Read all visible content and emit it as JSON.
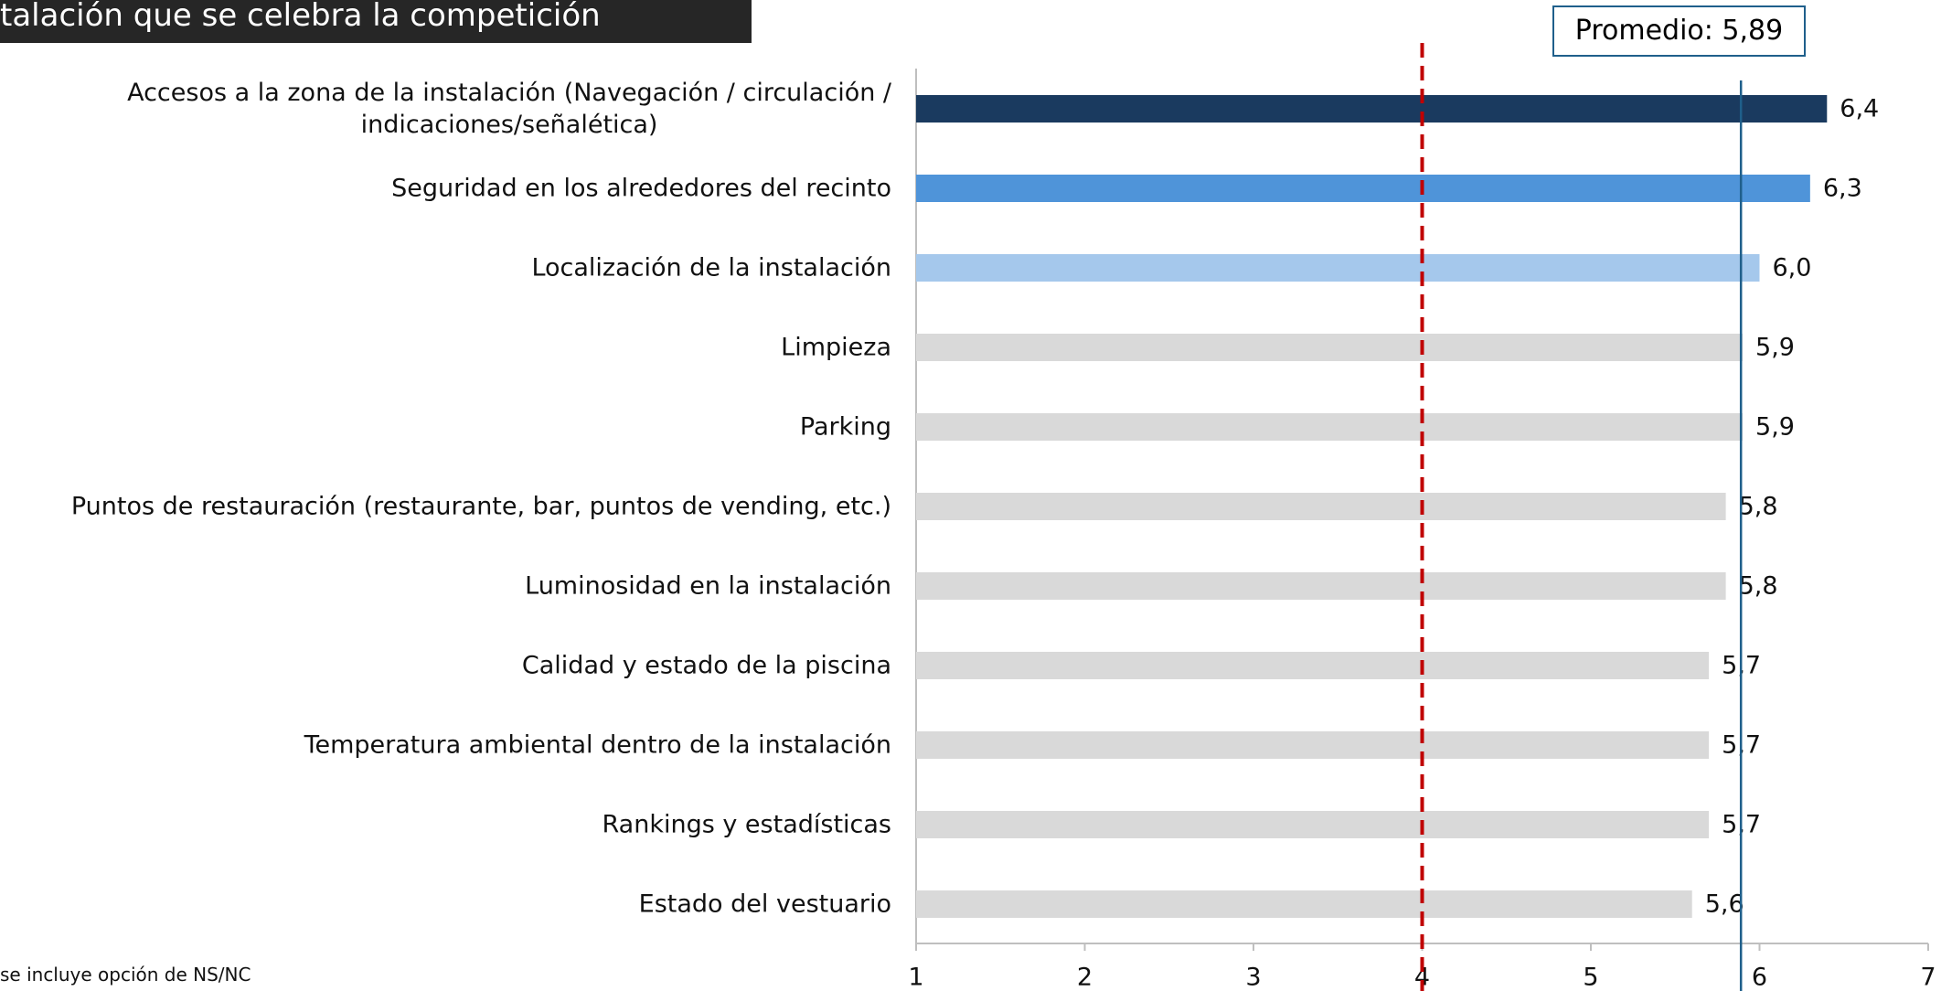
{
  "chart_data": {
    "type": "barh",
    "title": "talación que se celebra la competición",
    "footnote": "se incluye opción de NS/NC",
    "categories": [
      "Accesos a la zona de la instalación (Navegación / circulación /\nindicaciones/señalética)",
      "Seguridad en los alrededores del recinto",
      "Localización de la instalación",
      "Limpieza",
      "Parking",
      "Puntos de restauración (restaurante, bar, puntos de vending, etc.)",
      "Luminosidad en la instalación",
      "Calidad y estado de la piscina",
      "Temperatura ambiental dentro de la instalación",
      "Rankings y estadísticas",
      "Estado del vestuario"
    ],
    "values": [
      6.4,
      6.3,
      6.0,
      5.9,
      5.9,
      5.8,
      5.8,
      5.7,
      5.7,
      5.7,
      5.6
    ],
    "value_labels": [
      "6,4",
      "6,3",
      "6,0",
      "5,9",
      "5,9",
      "5,8",
      "5,8",
      "5,7",
      "5,7",
      "5,7",
      "5,6"
    ],
    "colors": [
      "#1a3a5f",
      "#4f94d9",
      "#a5c8ec",
      "#d9d9d9",
      "#d9d9d9",
      "#d9d9d9",
      "#d9d9d9",
      "#d9d9d9",
      "#d9d9d9",
      "#d9d9d9",
      "#d9d9d9"
    ],
    "xlim": [
      1,
      7
    ],
    "xticks": [
      1,
      2,
      3,
      4,
      5,
      6,
      7
    ],
    "reference_lines": [
      {
        "value": 4,
        "color": "#c00000",
        "style": "dashed"
      },
      {
        "value": 5.89,
        "color": "#1f5f8b",
        "style": "solid",
        "label": "Promedio: 5,89"
      }
    ]
  }
}
